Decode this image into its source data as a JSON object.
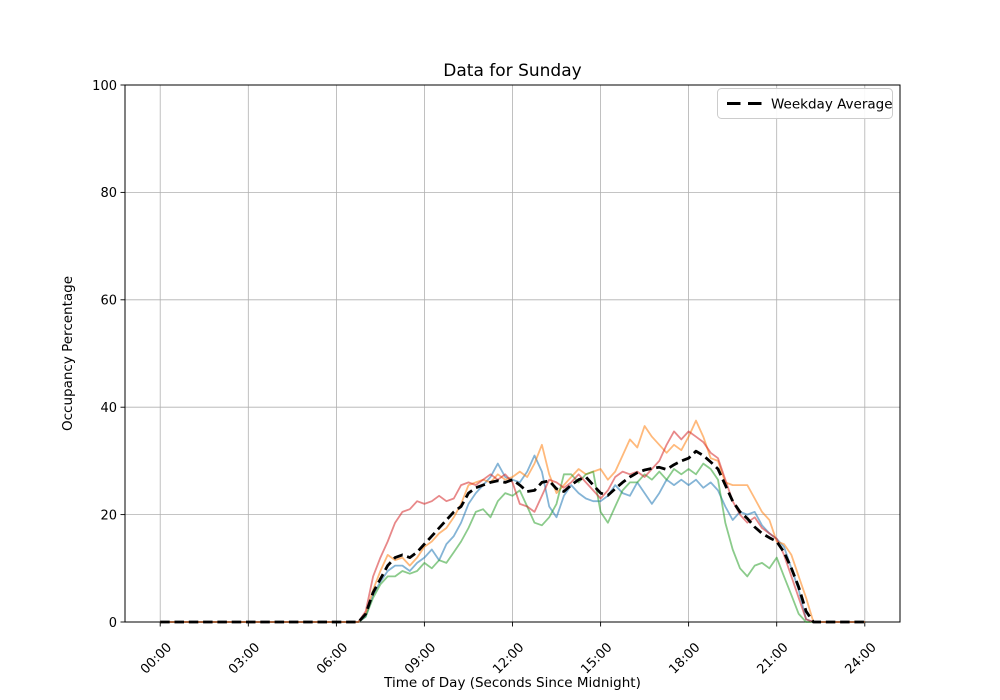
{
  "chart_data": {
    "type": "line",
    "title": "Data for Sunday",
    "xlabel": "Time of Day (Seconds Since Midnight)",
    "ylabel": "Occupancy Percentage",
    "x_tick_hours": [
      0,
      3,
      6,
      9,
      12,
      15,
      18,
      21,
      24
    ],
    "x_tick_labels": [
      "00:00",
      "03:00",
      "06:00",
      "09:00",
      "12:00",
      "15:00",
      "18:00",
      "21:00",
      "24:00"
    ],
    "y_ticks": [
      0,
      20,
      40,
      60,
      80,
      100
    ],
    "ylim": [
      0,
      100
    ],
    "xlim_hours": [
      -1.2,
      25.2
    ],
    "grid": true,
    "legend": {
      "position": "upper right",
      "entries": [
        {
          "label": "Weekday Average",
          "color": "#000000",
          "linestyle": "dashed"
        }
      ]
    },
    "x_hours": [
      0,
      0.25,
      0.5,
      0.75,
      1,
      1.25,
      1.5,
      1.75,
      2,
      2.25,
      2.5,
      2.75,
      3,
      3.25,
      3.5,
      3.75,
      4,
      4.25,
      4.5,
      4.75,
      5,
      5.25,
      5.5,
      5.75,
      6,
      6.25,
      6.5,
      6.75,
      7,
      7.25,
      7.5,
      7.75,
      8,
      8.25,
      8.5,
      8.75,
      9,
      9.25,
      9.5,
      9.75,
      10,
      10.25,
      10.5,
      10.75,
      11,
      11.25,
      11.5,
      11.75,
      12,
      12.25,
      12.5,
      12.75,
      13,
      13.25,
      13.5,
      13.75,
      14,
      14.25,
      14.5,
      14.75,
      15,
      15.25,
      15.5,
      15.75,
      16,
      16.25,
      16.5,
      16.75,
      17,
      17.25,
      17.5,
      17.75,
      18,
      18.25,
      18.5,
      18.75,
      19,
      19.25,
      19.5,
      19.75,
      20,
      20.25,
      20.5,
      20.75,
      21,
      21.25,
      21.5,
      21.75,
      22,
      22.25,
      22.5,
      22.75,
      23,
      23.25,
      23.5,
      23.75,
      24
    ],
    "series": [
      {
        "id": "sunday-1",
        "color": "#1f77b4",
        "opacity": 0.55,
        "width": 1.8,
        "dashed": false,
        "values": [
          0,
          0,
          0,
          0,
          0,
          0,
          0,
          0,
          0,
          0,
          0,
          0,
          0,
          0,
          0,
          0,
          0,
          0,
          0,
          0,
          0,
          0,
          0,
          0,
          0,
          0,
          0,
          0,
          1,
          5,
          7.5,
          9.5,
          10.5,
          10.5,
          9.5,
          11,
          12,
          13.5,
          11.5,
          14.5,
          16,
          18.5,
          22,
          24,
          25.5,
          27,
          29.5,
          27,
          26.5,
          26,
          28,
          31,
          28,
          21.5,
          19.5,
          23.5,
          25.5,
          24,
          23,
          22.5,
          22.5,
          23.5,
          25.5,
          24,
          23.5,
          26,
          24,
          22,
          24,
          26.5,
          25.5,
          26.5,
          25.5,
          26.5,
          25,
          26,
          24.5,
          21.5,
          19,
          20.5,
          20,
          20.5,
          18,
          16.5,
          15.5,
          14,
          10,
          6,
          0.5,
          0,
          0,
          0,
          0,
          0,
          0,
          0,
          0
        ]
      },
      {
        "id": "sunday-2",
        "color": "#ff7f0e",
        "opacity": 0.55,
        "width": 1.8,
        "dashed": false,
        "values": [
          0,
          0,
          0,
          0,
          0,
          0,
          0,
          0,
          0,
          0,
          0,
          0,
          0,
          0,
          0,
          0,
          0,
          0,
          0,
          0,
          0,
          0,
          0,
          0,
          0,
          0,
          0,
          0,
          1.5,
          6,
          9.5,
          12.5,
          11.5,
          12,
          10.5,
          12,
          14,
          15,
          16.5,
          17.5,
          19.5,
          22,
          25.5,
          26,
          26.5,
          26,
          27.5,
          26.5,
          27,
          28,
          27,
          29.5,
          33,
          27.5,
          24,
          25.5,
          27,
          28.5,
          27.5,
          28,
          28.5,
          26.5,
          28,
          31,
          34,
          32.5,
          36.5,
          34.5,
          33,
          31.5,
          33,
          32,
          34.5,
          37.5,
          34.5,
          30.5,
          30,
          26,
          25.5,
          25.5,
          25.5,
          23,
          20.5,
          19,
          15,
          14.5,
          12.5,
          8.5,
          4.5,
          0,
          0,
          0,
          0,
          0,
          0,
          0,
          0
        ]
      },
      {
        "id": "sunday-3",
        "color": "#2ca02c",
        "opacity": 0.55,
        "width": 1.8,
        "dashed": false,
        "values": [
          0,
          0,
          0,
          0,
          0,
          0,
          0,
          0,
          0,
          0,
          0,
          0,
          0,
          0,
          0,
          0,
          0,
          0,
          0,
          0,
          0,
          0,
          0,
          0,
          0,
          0,
          0,
          0,
          1,
          4.5,
          7,
          8.5,
          8.5,
          9.5,
          9,
          9.5,
          11,
          10,
          11.5,
          11,
          13,
          15,
          17.5,
          20.5,
          21,
          19.5,
          22.5,
          24,
          23.5,
          24.5,
          21.5,
          18.5,
          18,
          19.5,
          22,
          27.5,
          27.5,
          26,
          27.5,
          28,
          20.5,
          18.5,
          21.5,
          24.5,
          26,
          26,
          27.5,
          26.5,
          28,
          26.5,
          28.5,
          27.5,
          28.5,
          27.5,
          29.5,
          28.5,
          26.5,
          18.5,
          13.5,
          10,
          8.5,
          10.5,
          11,
          10,
          12,
          8.5,
          5,
          1.5,
          0,
          0,
          0,
          0,
          0,
          0,
          0,
          0,
          0
        ]
      },
      {
        "id": "sunday-4",
        "color": "#d62728",
        "opacity": 0.55,
        "width": 1.8,
        "dashed": false,
        "values": [
          0,
          0,
          0,
          0,
          0,
          0,
          0,
          0,
          0,
          0,
          0,
          0,
          0,
          0,
          0,
          0,
          0,
          0,
          0,
          0,
          0,
          0,
          0,
          0,
          0,
          0,
          0,
          0,
          2,
          8.5,
          12,
          15,
          18.5,
          20.5,
          21,
          22.5,
          22,
          22.5,
          23.5,
          22.5,
          23,
          25.5,
          26,
          25.5,
          26.5,
          27.5,
          26.5,
          27.5,
          26,
          22,
          21.5,
          20.5,
          23.5,
          26.5,
          26,
          25,
          26,
          27.5,
          26,
          24.5,
          23,
          24.5,
          27,
          28,
          27.5,
          28,
          27,
          28.5,
          30,
          33,
          35.5,
          34,
          35.5,
          34.5,
          33.5,
          31.5,
          30.5,
          26.5,
          22.5,
          20,
          18.5,
          19.5,
          17.5,
          16.5,
          15.5,
          12.5,
          8.5,
          4.5,
          0.5,
          0,
          0,
          0,
          0,
          0,
          0,
          0,
          0
        ]
      },
      {
        "id": "weekday-average",
        "color": "#000000",
        "opacity": 1,
        "width": 2.8,
        "dashed": true,
        "legend_label": "Weekday Average",
        "values": [
          0,
          0,
          0,
          0,
          0,
          0,
          0,
          0,
          0,
          0,
          0,
          0,
          0,
          0,
          0,
          0,
          0,
          0,
          0,
          0,
          0,
          0,
          0,
          0,
          0,
          0,
          0,
          0,
          1.5,
          5.5,
          8,
          10.5,
          12,
          12.5,
          12,
          13,
          14.5,
          16,
          17.5,
          19,
          20.5,
          21.5,
          24,
          25,
          25.5,
          26,
          26.3,
          26,
          26.5,
          25.5,
          24.3,
          24.5,
          26,
          26.3,
          24.8,
          24.3,
          25.5,
          26.5,
          27,
          25.5,
          24,
          23.6,
          24.8,
          26,
          27,
          27.8,
          28.3,
          28.6,
          28.8,
          28.4,
          29.3,
          30,
          30.5,
          31.8,
          31,
          29.8,
          28.5,
          25.5,
          22.5,
          20.5,
          19.3,
          17.7,
          16.5,
          15.7,
          15,
          13,
          10,
          6.5,
          2,
          0,
          0,
          0,
          0,
          0,
          0,
          0,
          0
        ]
      }
    ]
  }
}
